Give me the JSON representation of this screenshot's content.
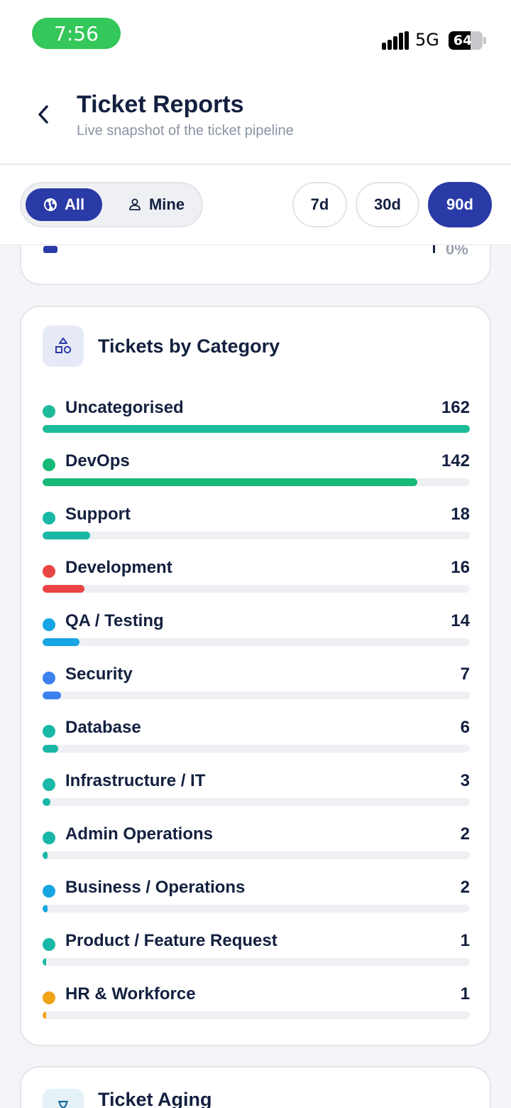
{
  "status_bar": {
    "time": "7:56",
    "network": "5G",
    "battery": 64
  },
  "header": {
    "title": "Ticket Reports",
    "subtitle": "Live snapshot of the ticket pipeline"
  },
  "filters": {
    "scope": [
      {
        "label": "All",
        "icon": "globe-icon",
        "active": true
      },
      {
        "label": "Mine",
        "icon": "person-icon",
        "active": false
      }
    ],
    "ranges": [
      {
        "label": "7d",
        "active": false
      },
      {
        "label": "30d",
        "active": false
      },
      {
        "label": "90d",
        "active": true
      }
    ]
  },
  "previous_card": {
    "percent": "0%",
    "marker_color": "#2a3aa6"
  },
  "category_card": {
    "title": "Tickets by Category",
    "icon": "shapes-icon",
    "items": [
      {
        "label": "Uncategorised",
        "count": 162,
        "color": "#1dbb99"
      },
      {
        "label": "DevOps",
        "count": 142,
        "color": "#16b978"
      },
      {
        "label": "Support",
        "count": 18,
        "color": "#19b8a6"
      },
      {
        "label": "Development",
        "count": 16,
        "color": "#ea4545"
      },
      {
        "label": "QA / Testing",
        "count": 14,
        "color": "#17a5e3"
      },
      {
        "label": "Security",
        "count": 7,
        "color": "#3b82f0"
      },
      {
        "label": "Database",
        "count": 6,
        "color": "#19b8a6"
      },
      {
        "label": "Infrastructure / IT",
        "count": 3,
        "color": "#19b8a6"
      },
      {
        "label": "Admin Operations",
        "count": 2,
        "color": "#19b8a6"
      },
      {
        "label": "Business / Operations",
        "count": 2,
        "color": "#17a5e3"
      },
      {
        "label": "Product / Feature Request",
        "count": 1,
        "color": "#19b8a6"
      },
      {
        "label": "HR & Workforce",
        "count": 1,
        "color": "#f0a21b"
      }
    ]
  },
  "aging_card": {
    "title": "Ticket Aging",
    "icon": "hourglass-icon"
  }
}
